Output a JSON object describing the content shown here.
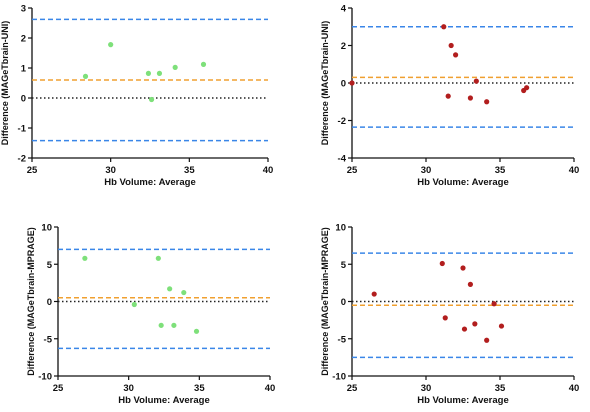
{
  "chart_data": [
    {
      "type": "scatter",
      "xlabel": "Hb Volume: Average",
      "ylabel": "Difference (MAGeTbrain-UNI)",
      "xlim": [
        25,
        40
      ],
      "ylim": [
        -2,
        3
      ],
      "xticks": [
        25,
        30,
        35,
        40
      ],
      "yticks": [
        -2,
        -1,
        0,
        1,
        2,
        3
      ],
      "point_color": "#7ee07a",
      "points": [
        {
          "x": 28.4,
          "y": 0.72
        },
        {
          "x": 30.0,
          "y": 1.78
        },
        {
          "x": 32.4,
          "y": 0.82
        },
        {
          "x": 32.6,
          "y": -0.05
        },
        {
          "x": 33.1,
          "y": 0.82
        },
        {
          "x": 34.1,
          "y": 1.02
        },
        {
          "x": 35.9,
          "y": 1.12
        }
      ],
      "lines": [
        {
          "y": 2.62,
          "style": "dashed",
          "color": "#3a86e8"
        },
        {
          "y": 0.6,
          "style": "dashed",
          "color": "#f0a030"
        },
        {
          "y": 0.0,
          "style": "dotted",
          "color": "#222222"
        },
        {
          "y": -1.42,
          "style": "dashed",
          "color": "#3a86e8"
        }
      ]
    },
    {
      "type": "scatter",
      "xlabel": "Hb Volume: Average",
      "ylabel": "Difference (MAGeTbrain-UNI)",
      "xlim": [
        25,
        40
      ],
      "ylim": [
        -4,
        4
      ],
      "xticks": [
        25,
        30,
        35,
        40
      ],
      "yticks": [
        -4,
        -2,
        0,
        2,
        4
      ],
      "point_color": "#b21e1e",
      "points": [
        {
          "x": 25.0,
          "y": 0.0
        },
        {
          "x": 31.2,
          "y": 3.0
        },
        {
          "x": 31.7,
          "y": 2.0
        },
        {
          "x": 32.0,
          "y": 1.5
        },
        {
          "x": 31.5,
          "y": -0.7
        },
        {
          "x": 33.0,
          "y": -0.8
        },
        {
          "x": 33.4,
          "y": 0.1
        },
        {
          "x": 34.1,
          "y": -1.0
        },
        {
          "x": 36.6,
          "y": -0.4
        },
        {
          "x": 36.8,
          "y": -0.25
        }
      ],
      "lines": [
        {
          "y": 3.0,
          "style": "dashed",
          "color": "#3a86e8"
        },
        {
          "y": 0.3,
          "style": "dashed",
          "color": "#f0a030"
        },
        {
          "y": 0.0,
          "style": "dotted",
          "color": "#222222"
        },
        {
          "y": -2.35,
          "style": "dashed",
          "color": "#3a86e8"
        }
      ]
    },
    {
      "type": "scatter",
      "xlabel": "Hb Volume: Average",
      "ylabel": "Difference (MAGeTbrain-MPRAGE)",
      "xlim": [
        25,
        40
      ],
      "ylim": [
        -10,
        10
      ],
      "xticks": [
        25,
        30,
        35,
        40
      ],
      "yticks": [
        -10,
        -5,
        0,
        5,
        10
      ],
      "point_color": "#7ee07a",
      "points": [
        {
          "x": 26.9,
          "y": 5.8
        },
        {
          "x": 30.4,
          "y": -0.4
        },
        {
          "x": 32.1,
          "y": 5.8
        },
        {
          "x": 32.3,
          "y": -3.2
        },
        {
          "x": 32.9,
          "y": 1.7
        },
        {
          "x": 33.2,
          "y": -3.2
        },
        {
          "x": 33.9,
          "y": 1.2
        },
        {
          "x": 34.8,
          "y": -4.0
        }
      ],
      "lines": [
        {
          "y": 7.0,
          "style": "dashed",
          "color": "#3a86e8"
        },
        {
          "y": 0.5,
          "style": "dashed",
          "color": "#f0a030"
        },
        {
          "y": 0.0,
          "style": "dotted",
          "color": "#222222"
        },
        {
          "y": -6.3,
          "style": "dashed",
          "color": "#3a86e8"
        }
      ]
    },
    {
      "type": "scatter",
      "xlabel": "Hb Volume: Average",
      "ylabel": "Difference (MAGeTbrain-MPRAGE)",
      "xlim": [
        25,
        40
      ],
      "ylim": [
        -10,
        10
      ],
      "xticks": [
        25,
        30,
        35,
        40
      ],
      "yticks": [
        -10,
        -5,
        0,
        5,
        10
      ],
      "point_color": "#b21e1e",
      "points": [
        {
          "x": 26.5,
          "y": 1.0
        },
        {
          "x": 31.1,
          "y": 5.1
        },
        {
          "x": 31.3,
          "y": -2.2
        },
        {
          "x": 32.5,
          "y": 4.5
        },
        {
          "x": 32.6,
          "y": -3.7
        },
        {
          "x": 33.0,
          "y": 2.3
        },
        {
          "x": 33.3,
          "y": -3.0
        },
        {
          "x": 34.1,
          "y": -5.2
        },
        {
          "x": 34.6,
          "y": -0.3
        },
        {
          "x": 35.1,
          "y": -3.3
        }
      ],
      "lines": [
        {
          "y": 6.5,
          "style": "dashed",
          "color": "#3a86e8"
        },
        {
          "y": 0.0,
          "style": "dotted",
          "color": "#222222"
        },
        {
          "y": -0.5,
          "style": "dashed",
          "color": "#f0a030"
        },
        {
          "y": -7.5,
          "style": "dashed",
          "color": "#3a86e8"
        }
      ]
    }
  ]
}
